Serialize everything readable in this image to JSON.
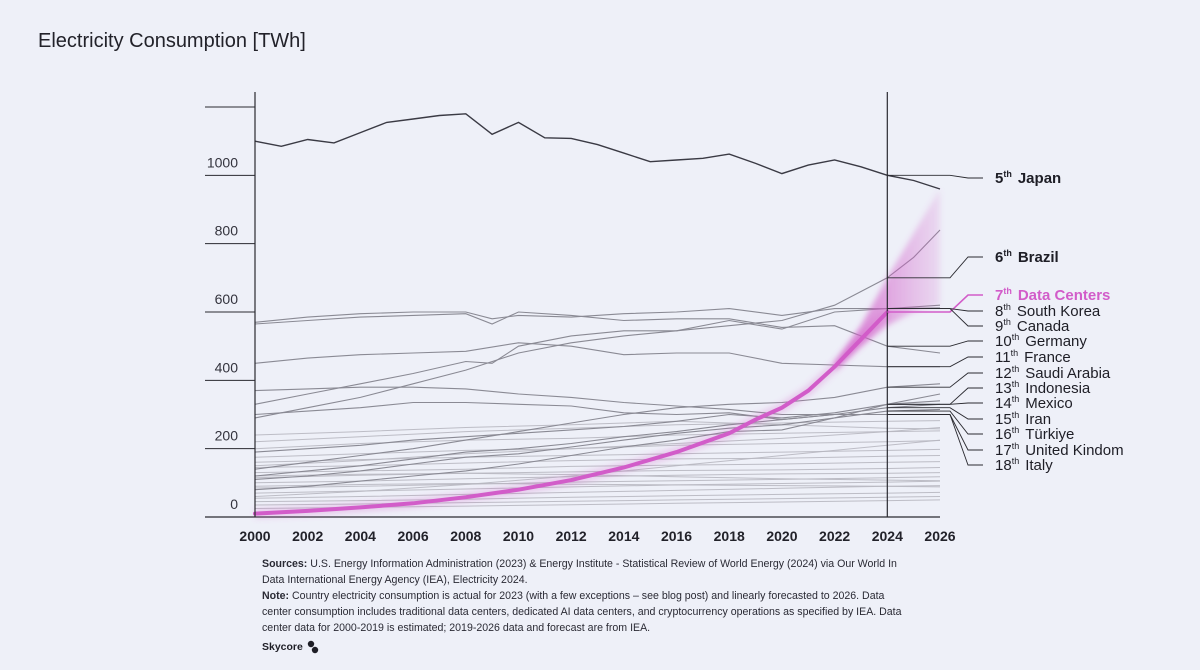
{
  "title": "Electricity Consumption [TWh]",
  "sources_label": "Sources:",
  "sources_text": "U.S. Energy Information Administration (2023) & Energy Institute - Statistical Review of World Energy (2024) via Our World In Data International Energy Agency (IEA), Electricity 2024.",
  "note_label": "Note:",
  "note_text": "Country electricity consumption is actual for 2023 (with a few exceptions – see blog post) and linearly forecasted to 2026. Data center consumption includes traditional data centers, dedicated AI data centers, and cryptocurrency operations as specified by IEA. Data center data for 2000-2019 is estimated; 2019-2026 data and forecast are from IEA.",
  "brand": "Skycore",
  "colors": {
    "highlight": "#d25cc9",
    "japan": "#3a3a44",
    "country": "#8a8a94",
    "minor": "#b7b7c0",
    "axis": "#2a2a30"
  },
  "chart_data": {
    "type": "line",
    "title": "Electricity Consumption [TWh]",
    "xlabel": "",
    "ylabel": "",
    "xlim": [
      2000,
      2026
    ],
    "ylim": [
      0,
      1200
    ],
    "x_ticks": [
      2000,
      2002,
      2004,
      2006,
      2008,
      2010,
      2012,
      2014,
      2016,
      2018,
      2020,
      2022,
      2024,
      2026
    ],
    "y_ticks": [
      0,
      200,
      400,
      600,
      800,
      1000
    ],
    "y_gridlines": [
      200,
      400,
      600,
      800,
      1000,
      1200
    ],
    "forecast_start": 2024,
    "series": [
      {
        "name": "Japan",
        "rank": "5",
        "bold": true,
        "x": [
          2000,
          2001,
          2002,
          2003,
          2004,
          2005,
          2006,
          2007,
          2008,
          2009,
          2010,
          2011,
          2012,
          2013,
          2014,
          2015,
          2016,
          2017,
          2018,
          2019,
          2020,
          2021,
          2022,
          2023,
          2024,
          2025,
          2026
        ],
        "y": [
          1100,
          1085,
          1105,
          1095,
          1125,
          1155,
          1165,
          1175,
          1180,
          1120,
          1155,
          1110,
          1108,
          1090,
          1065,
          1040,
          1045,
          1050,
          1062,
          1035,
          1005,
          1030,
          1045,
          1025,
          1000,
          985,
          960
        ]
      },
      {
        "name": "Brazil",
        "rank": "6",
        "bold": true,
        "x": [
          2000,
          2002,
          2004,
          2006,
          2008,
          2009,
          2010,
          2012,
          2014,
          2016,
          2018,
          2020,
          2022,
          2023,
          2024,
          2025,
          2026
        ],
        "y": [
          330,
          360,
          390,
          420,
          455,
          450,
          500,
          530,
          545,
          545,
          560,
          575,
          620,
          660,
          700,
          760,
          840
        ]
      },
      {
        "name": "Data Centers",
        "rank": "7",
        "bold": true,
        "highlight": true,
        "x": [
          2000,
          2002,
          2004,
          2006,
          2008,
          2010,
          2012,
          2014,
          2016,
          2018,
          2019,
          2020,
          2021,
          2022,
          2023,
          2024,
          2025,
          2026
        ],
        "y": [
          10,
          18,
          28,
          40,
          58,
          80,
          108,
          145,
          190,
          245,
          285,
          320,
          370,
          440,
          520,
          600,
          640,
          650
        ],
        "forecast_range": {
          "x": [
            2022,
            2023,
            2024,
            2025,
            2026
          ],
          "low": [
            430,
            500,
            560,
            600,
            620
          ],
          "high": [
            450,
            560,
            700,
            830,
            960
          ]
        }
      },
      {
        "name": "South Korea",
        "rank": "8",
        "x": [
          2000,
          2002,
          2004,
          2006,
          2008,
          2010,
          2012,
          2014,
          2016,
          2018,
          2020,
          2022,
          2024,
          2026
        ],
        "y": [
          290,
          320,
          350,
          390,
          430,
          480,
          510,
          530,
          545,
          575,
          550,
          600,
          610,
          620
        ]
      },
      {
        "name": "Canada",
        "rank": "9",
        "x": [
          2000,
          2002,
          2004,
          2006,
          2008,
          2009,
          2010,
          2012,
          2014,
          2016,
          2018,
          2020,
          2022,
          2024,
          2026
        ],
        "y": [
          570,
          585,
          595,
          600,
          600,
          580,
          590,
          585,
          595,
          600,
          610,
          590,
          610,
          610,
          612
        ]
      },
      {
        "name": "Germany",
        "rank": "10",
        "x": [
          2000,
          2002,
          2004,
          2006,
          2008,
          2009,
          2010,
          2012,
          2014,
          2016,
          2018,
          2020,
          2022,
          2024,
          2026
        ],
        "y": [
          565,
          575,
          585,
          590,
          595,
          565,
          600,
          590,
          575,
          580,
          580,
          555,
          560,
          500,
          480
        ]
      },
      {
        "name": "France",
        "rank": "11",
        "x": [
          2000,
          2002,
          2004,
          2006,
          2008,
          2010,
          2012,
          2014,
          2016,
          2018,
          2020,
          2022,
          2024,
          2026
        ],
        "y": [
          450,
          465,
          475,
          480,
          485,
          510,
          500,
          475,
          480,
          480,
          450,
          445,
          440,
          440
        ]
      },
      {
        "name": "Saudi Arabia",
        "rank": "12",
        "x": [
          2000,
          2002,
          2004,
          2006,
          2008,
          2010,
          2012,
          2014,
          2016,
          2018,
          2020,
          2022,
          2024,
          2026
        ],
        "y": [
          140,
          160,
          180,
          200,
          225,
          250,
          275,
          300,
          320,
          330,
          335,
          350,
          380,
          390
        ]
      },
      {
        "name": "Indonesia",
        "rank": "13",
        "x": [
          2000,
          2002,
          2004,
          2006,
          2008,
          2010,
          2012,
          2014,
          2016,
          2018,
          2020,
          2022,
          2024,
          2026
        ],
        "y": [
          80,
          90,
          105,
          120,
          135,
          155,
          180,
          205,
          225,
          250,
          255,
          290,
          330,
          360
        ]
      },
      {
        "name": "Mexico",
        "rank": "14",
        "x": [
          2000,
          2002,
          2004,
          2006,
          2008,
          2010,
          2012,
          2014,
          2016,
          2018,
          2020,
          2022,
          2024,
          2026
        ],
        "y": [
          190,
          200,
          210,
          225,
          235,
          245,
          255,
          265,
          280,
          300,
          290,
          305,
          330,
          340
        ]
      },
      {
        "name": "Iran",
        "rank": "15",
        "x": [
          2000,
          2002,
          2004,
          2006,
          2008,
          2010,
          2012,
          2014,
          2016,
          2018,
          2020,
          2022,
          2024,
          2026
        ],
        "y": [
          120,
          135,
          150,
          170,
          190,
          200,
          215,
          235,
          250,
          270,
          285,
          300,
          320,
          330
        ]
      },
      {
        "name": "Türkiye",
        "rank": "16",
        "x": [
          2000,
          2002,
          2004,
          2006,
          2008,
          2010,
          2012,
          2014,
          2016,
          2018,
          2020,
          2022,
          2024,
          2026
        ],
        "y": [
          110,
          120,
          135,
          155,
          175,
          185,
          205,
          225,
          245,
          260,
          270,
          290,
          310,
          315
        ]
      },
      {
        "name": "United Kindom",
        "rank": "17",
        "x": [
          2000,
          2002,
          2004,
          2006,
          2008,
          2010,
          2012,
          2014,
          2016,
          2018,
          2020,
          2022,
          2024,
          2026
        ],
        "y": [
          370,
          375,
          380,
          380,
          375,
          360,
          350,
          335,
          325,
          315,
          300,
          300,
          300,
          300
        ]
      },
      {
        "name": "Italy",
        "rank": "18",
        "x": [
          2000,
          2002,
          2004,
          2006,
          2008,
          2010,
          2012,
          2014,
          2016,
          2018,
          2020,
          2022,
          2024,
          2026
        ],
        "y": [
          300,
          310,
          320,
          335,
          335,
          330,
          325,
          305,
          300,
          305,
          285,
          300,
          300,
          300
        ]
      }
    ],
    "other_series": [
      {
        "x": [
          2000,
          2004,
          2008,
          2012,
          2016,
          2020,
          2024,
          2026
        ],
        "y": [
          220,
          235,
          250,
          260,
          270,
          275,
          280,
          282
        ]
      },
      {
        "x": [
          2000,
          2004,
          2008,
          2012,
          2016,
          2020,
          2024,
          2026
        ],
        "y": [
          200,
          215,
          225,
          230,
          240,
          245,
          250,
          252
        ]
      },
      {
        "x": [
          2000,
          2004,
          2008,
          2012,
          2016,
          2020,
          2024,
          2026
        ],
        "y": [
          175,
          185,
          195,
          200,
          210,
          215,
          220,
          224
        ]
      },
      {
        "x": [
          2000,
          2004,
          2008,
          2012,
          2016,
          2020,
          2024,
          2026
        ],
        "y": [
          160,
          168,
          175,
          180,
          185,
          190,
          195,
          198
        ]
      },
      {
        "x": [
          2000,
          2004,
          2008,
          2012,
          2016,
          2020,
          2024,
          2026
        ],
        "y": [
          145,
          150,
          158,
          165,
          170,
          172,
          178,
          180
        ]
      },
      {
        "x": [
          2000,
          2004,
          2008,
          2012,
          2016,
          2020,
          2024,
          2026
        ],
        "y": [
          130,
          135,
          140,
          148,
          152,
          155,
          160,
          162
        ]
      },
      {
        "x": [
          2000,
          2004,
          2008,
          2012,
          2016,
          2020,
          2024,
          2026
        ],
        "y": [
          115,
          122,
          128,
          132,
          136,
          138,
          142,
          145
        ]
      },
      {
        "x": [
          2000,
          2004,
          2008,
          2012,
          2016,
          2020,
          2024,
          2026
        ],
        "y": [
          100,
          105,
          112,
          118,
          122,
          126,
          128,
          130
        ]
      },
      {
        "x": [
          2000,
          2004,
          2008,
          2012,
          2016,
          2020,
          2024,
          2026
        ],
        "y": [
          85,
          90,
          96,
          102,
          106,
          110,
          115,
          118
        ]
      },
      {
        "x": [
          2000,
          2004,
          2008,
          2012,
          2016,
          2020,
          2024,
          2026
        ],
        "y": [
          70,
          76,
          82,
          88,
          94,
          98,
          102,
          105
        ]
      },
      {
        "x": [
          2000,
          2004,
          2008,
          2012,
          2016,
          2020,
          2024,
          2026
        ],
        "y": [
          55,
          60,
          66,
          72,
          78,
          84,
          90,
          92
        ]
      },
      {
        "x": [
          2000,
          2004,
          2008,
          2012,
          2016,
          2020,
          2024,
          2026
        ],
        "y": [
          45,
          48,
          52,
          58,
          62,
          66,
          70,
          72
        ]
      },
      {
        "x": [
          2000,
          2004,
          2008,
          2012,
          2016,
          2020,
          2024,
          2026
        ],
        "y": [
          35,
          38,
          42,
          46,
          50,
          54,
          58,
          60
        ]
      },
      {
        "x": [
          2000,
          2004,
          2008,
          2012,
          2016,
          2020,
          2024,
          2026
        ],
        "y": [
          25,
          28,
          32,
          36,
          40,
          44,
          48,
          50
        ]
      },
      {
        "x": [
          2000,
          2004,
          2008,
          2012,
          2016,
          2020,
          2024,
          2026
        ],
        "y": [
          240,
          250,
          262,
          270,
          280,
          270,
          260,
          258
        ]
      },
      {
        "x": [
          2000,
          2004,
          2008,
          2012,
          2016,
          2020,
          2024,
          2026
        ],
        "y": [
          150,
          165,
          185,
          200,
          215,
          230,
          250,
          262
        ]
      },
      {
        "x": [
          2000,
          2004,
          2008,
          2012,
          2016,
          2020,
          2024,
          2026
        ],
        "y": [
          60,
          75,
          95,
          120,
          150,
          180,
          210,
          225
        ]
      },
      {
        "x": [
          2000,
          2004,
          2008,
          2012,
          2016,
          2020,
          2024,
          2026
        ],
        "y": [
          90,
          95,
          98,
          96,
          94,
          92,
          90,
          88
        ]
      },
      {
        "x": [
          2000,
          2004,
          2008,
          2012,
          2016,
          2020,
          2024,
          2026
        ],
        "y": [
          120,
          125,
          128,
          124,
          118,
          112,
          108,
          106
        ]
      }
    ]
  }
}
